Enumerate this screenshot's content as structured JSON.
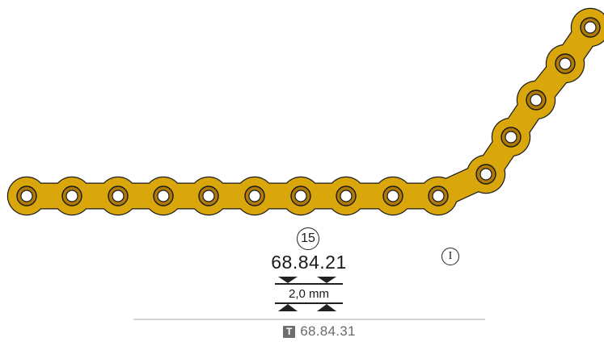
{
  "product": {
    "hole_count": "15",
    "part_number": "68.84.21",
    "variant_mark": "I",
    "thickness": "2,0 mm",
    "alternative": {
      "badge": "T",
      "part_number": "68.84.31"
    }
  },
  "colors": {
    "plate": "#d9a60c",
    "plate_outline": "#1a1a1a",
    "hole_ring": "#b07a06",
    "divider": "#b9b9b9",
    "alt_text": "#6a6a6a"
  },
  "icons": {
    "thickness_symbol": "thickness-arrows-icon"
  }
}
